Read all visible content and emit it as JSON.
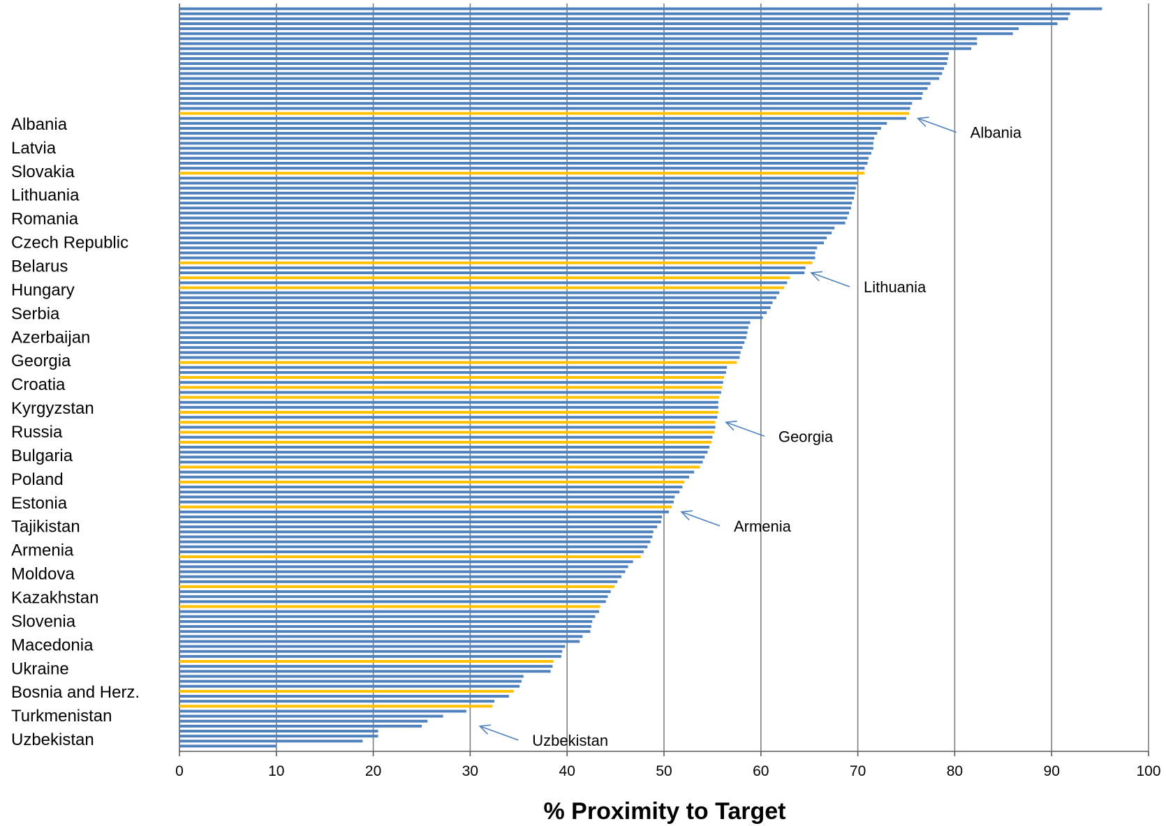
{
  "chart_data": {
    "type": "bar",
    "orientation": "horizontal",
    "xlabel": "% Proximity to Target",
    "xlim": [
      0,
      100
    ],
    "xticks": [
      0,
      10,
      20,
      30,
      40,
      50,
      60,
      70,
      80,
      90,
      100
    ],
    "grid": "vertical",
    "colors": {
      "default": "#4F81BD",
      "highlight": "#FFC000",
      "grid": "#7F7F7F",
      "arrow": "#4F81BD"
    },
    "labeled_countries": [
      "Albania",
      "Latvia",
      "Slovakia",
      "Lithuania",
      "Romania",
      "Czech Republic",
      "Belarus",
      "Hungary",
      "Serbia",
      "Azerbaijan",
      "Georgia",
      "Croatia",
      "Kyrgyzstan",
      "Russia",
      "Bulgaria",
      "Poland",
      "Estonia",
      "Tajikistan",
      "Armenia",
      "Moldova",
      "Kazakhstan",
      "Slovenia",
      "Macedonia",
      "Ukraine",
      "Bosnia and Herz.",
      "Turkmenistan",
      "Uzbekistan"
    ],
    "values": [
      95.2,
      91.9,
      91.7,
      90.6,
      86.6,
      86.0,
      82.3,
      82.3,
      81.7,
      79.4,
      79.3,
      79.2,
      78.9,
      78.7,
      78.4,
      77.5,
      77.2,
      76.7,
      76.6,
      75.6,
      75.4,
      75.3,
      75.0,
      73.0,
      72.4,
      72.0,
      71.7,
      71.6,
      71.6,
      71.4,
      71.1,
      71.0,
      70.7,
      70.7,
      70.0,
      70.0,
      69.8,
      69.7,
      69.6,
      69.4,
      69.3,
      69.1,
      68.9,
      68.7,
      67.6,
      67.3,
      66.8,
      66.5,
      65.8,
      65.6,
      65.6,
      65.3,
      64.6,
      64.5,
      63.0,
      62.7,
      62.4,
      61.9,
      61.6,
      61.2,
      61.0,
      60.6,
      60.2,
      58.9,
      58.7,
      58.6,
      58.5,
      58.3,
      58.1,
      57.9,
      57.8,
      57.5,
      56.5,
      56.4,
      56.2,
      56.1,
      56.0,
      55.9,
      55.7,
      55.6,
      55.6,
      55.6,
      55.5,
      55.3,
      55.3,
      55.2,
      55.0,
      54.9,
      54.7,
      54.5,
      54.2,
      54.0,
      53.7,
      53.1,
      52.6,
      52.1,
      51.9,
      51.6,
      51.1,
      51.0,
      50.8,
      50.5,
      49.8,
      49.7,
      49.3,
      48.9,
      48.8,
      48.6,
      48.3,
      47.9,
      47.6,
      46.8,
      46.3,
      46.0,
      45.6,
      45.2,
      44.9,
      44.5,
      44.2,
      44.0,
      43.4,
      43.3,
      42.9,
      42.6,
      42.5,
      42.4,
      41.6,
      41.3,
      39.8,
      39.5,
      39.4,
      38.6,
      38.5,
      38.3,
      35.5,
      35.3,
      35.1,
      34.5,
      34.0,
      32.5,
      32.3,
      29.6,
      27.2,
      25.6,
      25.0,
      20.5,
      20.5,
      18.9,
      10.0
    ],
    "highlight_indices": [
      21,
      33,
      51,
      54,
      56,
      71,
      74,
      76,
      78,
      81,
      83,
      85,
      87,
      92,
      95,
      100,
      110,
      116,
      120,
      131,
      137,
      140
    ],
    "annotations": [
      {
        "label": "Albania",
        "target": 76.2,
        "target_row": 22
      },
      {
        "label": "Lithuania",
        "target": 65.2,
        "target_row": 53
      },
      {
        "label": "Georgia",
        "target": 56.4,
        "target_row": 83
      },
      {
        "label": "Armenia",
        "target": 51.8,
        "target_row": 101
      },
      {
        "label": "Uzbekistan",
        "target": 31.0,
        "target_row": 144
      }
    ]
  }
}
